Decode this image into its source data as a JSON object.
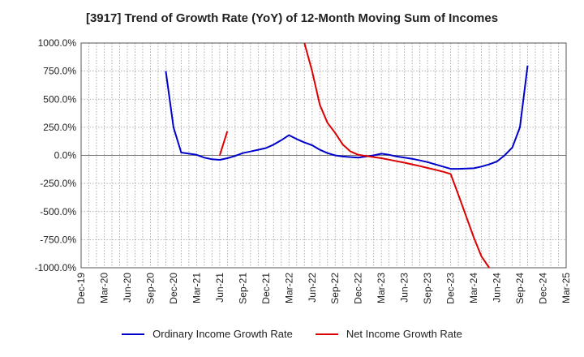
{
  "chart_data": {
    "type": "line",
    "title": "[3917]  Trend of Growth Rate (YoY) of 12-Month Moving Sum of Incomes",
    "xlabel": "",
    "ylabel": "",
    "ylim": [
      -1000,
      1000
    ],
    "yticks": [
      1000,
      750,
      500,
      250,
      0,
      -250,
      -500,
      -750,
      -1000
    ],
    "ytick_labels": [
      "1000.0%",
      "750.0%",
      "500.0%",
      "250.0%",
      "0.0%",
      "-250.0%",
      "-500.0%",
      "-750.0%",
      "-1000.0%"
    ],
    "x_tick_labels": [
      "Dec-19",
      "Mar-20",
      "Jun-20",
      "Sep-20",
      "Dec-20",
      "Mar-21",
      "Jun-21",
      "Sep-21",
      "Dec-21",
      "Mar-22",
      "Jun-22",
      "Sep-22",
      "Dec-22",
      "Mar-23",
      "Jun-23",
      "Sep-23",
      "Dec-23",
      "Mar-24",
      "Jun-24",
      "Sep-24",
      "Dec-24",
      "Mar-25"
    ],
    "grid": true,
    "legend_position": "bottom",
    "series": [
      {
        "name": "Ordinary Income Growth Rate",
        "color": "#0000cc",
        "points": [
          [
            "Nov-20",
            750
          ],
          [
            "Dec-20",
            250
          ],
          [
            "Jan-21",
            25
          ],
          [
            "Feb-21",
            15
          ],
          [
            "Mar-21",
            5
          ],
          [
            "Apr-21",
            -20
          ],
          [
            "May-21",
            -35
          ],
          [
            "Jun-21",
            -40
          ],
          [
            "Jul-21",
            -25
          ],
          [
            "Aug-21",
            -5
          ],
          [
            "Sep-21",
            20
          ],
          [
            "Oct-21",
            35
          ],
          [
            "Nov-21",
            50
          ],
          [
            "Dec-21",
            65
          ],
          [
            "Jan-22",
            95
          ],
          [
            "Feb-22",
            135
          ],
          [
            "Mar-22",
            180
          ],
          [
            "Apr-22",
            145
          ],
          [
            "May-22",
            115
          ],
          [
            "Jun-22",
            90
          ],
          [
            "Jul-22",
            50
          ],
          [
            "Aug-22",
            20
          ],
          [
            "Sep-22",
            0
          ],
          [
            "Oct-22",
            -10
          ],
          [
            "Nov-22",
            -15
          ],
          [
            "Dec-22",
            -20
          ],
          [
            "Jan-23",
            -10
          ],
          [
            "Feb-23",
            0
          ],
          [
            "Mar-23",
            15
          ],
          [
            "Apr-23",
            5
          ],
          [
            "May-23",
            -10
          ],
          [
            "Jun-23",
            -20
          ],
          [
            "Jul-23",
            -30
          ],
          [
            "Aug-23",
            -45
          ],
          [
            "Sep-23",
            -60
          ],
          [
            "Oct-23",
            -80
          ],
          [
            "Nov-23",
            -100
          ],
          [
            "Dec-23",
            -120
          ],
          [
            "Jan-24",
            -120
          ],
          [
            "Feb-24",
            -118
          ],
          [
            "Mar-24",
            -115
          ],
          [
            "Apr-24",
            -100
          ],
          [
            "May-24",
            -80
          ],
          [
            "Jun-24",
            -55
          ],
          [
            "Jul-24",
            0
          ],
          [
            "Aug-24",
            70
          ],
          [
            "Sep-24",
            250
          ],
          [
            "Oct-24",
            800
          ]
        ]
      },
      {
        "name": "Net Income Growth Rate",
        "color": "#dd0000",
        "segments": [
          [
            [
              "Jun-21",
              0
            ],
            [
              "Jul-21",
              215
            ]
          ],
          [
            [
              "May-22",
              1000
            ],
            [
              "Jun-22",
              750
            ],
            [
              "Jul-22",
              450
            ],
            [
              "Aug-22",
              290
            ],
            [
              "Sep-22",
              200
            ],
            [
              "Oct-22",
              95
            ],
            [
              "Nov-22",
              35
            ],
            [
              "Dec-22",
              5
            ],
            [
              "Jan-23",
              -5
            ],
            [
              "Feb-23",
              -15
            ],
            [
              "Mar-23",
              -25
            ],
            [
              "Apr-23",
              -38
            ],
            [
              "May-23",
              -52
            ],
            [
              "Jun-23",
              -65
            ],
            [
              "Jul-23",
              -80
            ],
            [
              "Aug-23",
              -95
            ],
            [
              "Sep-23",
              -112
            ],
            [
              "Oct-23",
              -128
            ],
            [
              "Nov-23",
              -145
            ],
            [
              "Dec-23",
              -165
            ],
            [
              "Jan-24",
              -350
            ],
            [
              "Feb-24",
              -540
            ],
            [
              "Mar-24",
              -730
            ],
            [
              "Apr-24",
              -900
            ],
            [
              "May-24",
              -1000
            ]
          ]
        ]
      }
    ]
  }
}
